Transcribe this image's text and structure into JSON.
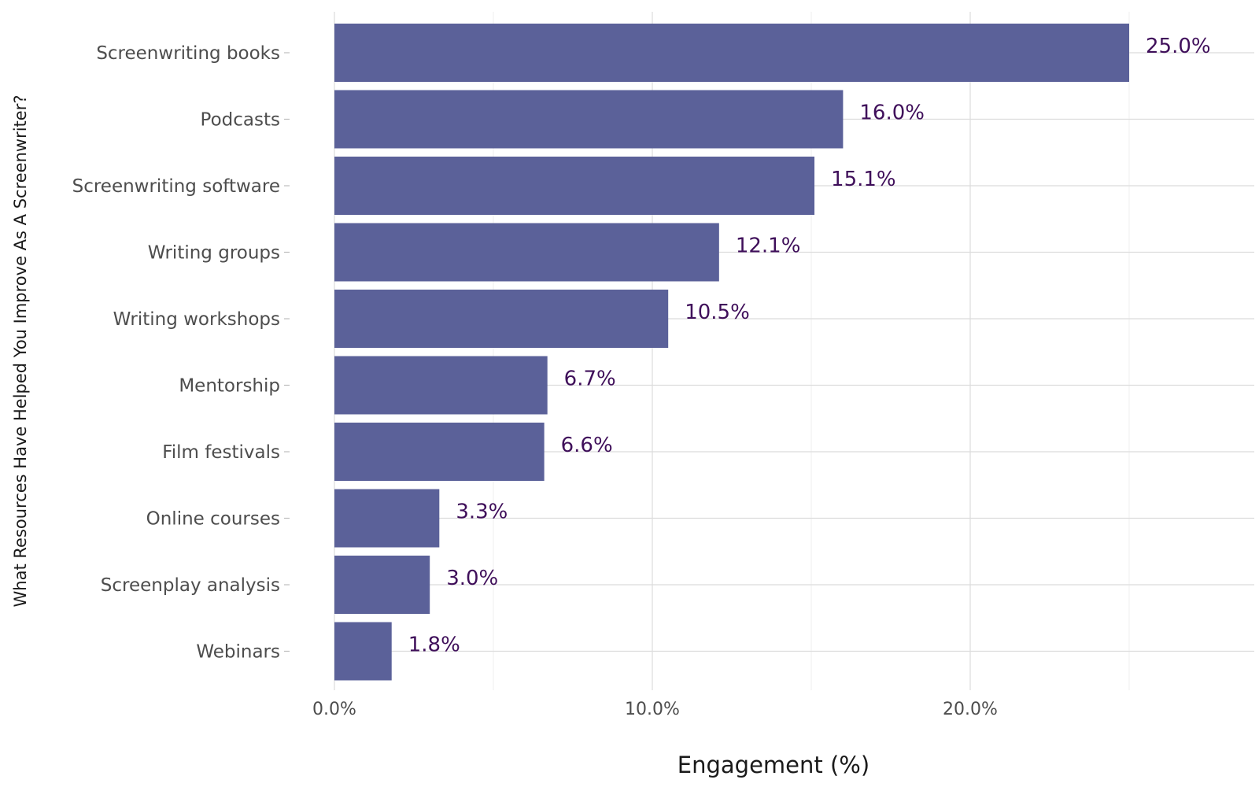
{
  "chart_data": {
    "type": "bar",
    "orientation": "horizontal",
    "title": "",
    "xlabel": "Engagement (%)",
    "ylabel": "What Resources Have Helped You Improve As A Screenwriter?",
    "categories": [
      "Screenwriting books",
      "Podcasts",
      "Screenwriting software",
      "Writing groups",
      "Writing workshops",
      "Mentorship",
      "Film festivals",
      "Online courses",
      "Screenplay analysis",
      "Webinars"
    ],
    "values": [
      25.0,
      16.0,
      15.1,
      12.1,
      10.5,
      6.7,
      6.6,
      3.3,
      3.0,
      1.8
    ],
    "value_labels": [
      "25.0%",
      "16.0%",
      "15.1%",
      "12.1%",
      "10.5%",
      "6.7%",
      "6.6%",
      "3.3%",
      "3.0%",
      "1.8%"
    ],
    "xticks": [
      0,
      10,
      20
    ],
    "xtick_labels": [
      "0.0%",
      "10.0%",
      "20.0%"
    ],
    "xlim": [
      0,
      29
    ],
    "grid": true,
    "legend": "none",
    "colors": {
      "bar": "#5b6199",
      "value_label": "#3f0f5a",
      "grid_major": "#dcdcdc",
      "grid_minor": "#efefef",
      "axis_text": "#4d4d4d",
      "title_text": "#1a1a1a"
    }
  }
}
